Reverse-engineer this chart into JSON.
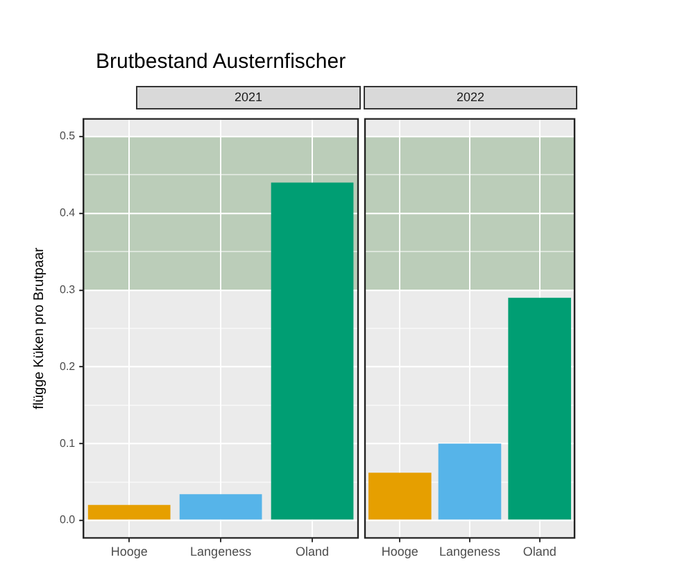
{
  "chart_data": [
    {
      "type": "bar",
      "title": "Brutbestand Austernfischer",
      "subtitle": "2021",
      "ylabel": "flügge Küken pro Brutpaar",
      "categories": [
        "Hooge",
        "Langeness",
        "Oland"
      ],
      "values": [
        0.02,
        0.034,
        0.44
      ],
      "colors": [
        "#e69f00",
        "#56b4e9",
        "#009e73"
      ],
      "ylim": [
        -0.023,
        0.523
      ],
      "yticks": [
        {
          "value": 0,
          "label": "0.0"
        },
        {
          "value": 0.05,
          "label": null
        },
        0.1,
        {
          "value": 0.15,
          "label": null
        },
        0.2,
        {
          "value": 0.25,
          "label": null
        },
        0.3,
        {
          "value": 0.35,
          "label": null
        },
        0.4,
        {
          "value": 0.45,
          "label": null
        },
        0.5
      ],
      "bands": [
        {
          "axis": "y",
          "from": 0.3,
          "to": 0.5,
          "color": "#bbcdb9"
        }
      ],
      "grid": true
    },
    {
      "type": "bar",
      "subtitle": "2022",
      "categories": [
        "Hooge",
        "Langeness",
        "Oland"
      ],
      "values": [
        0.062,
        0.1,
        0.29
      ],
      "colors": [
        "#e69f00",
        "#56b4e9",
        "#009e73"
      ],
      "ylim": [
        -0.023,
        0.523
      ],
      "yticks": [
        0,
        {
          "value": 0.05,
          "label": null
        },
        0.1,
        {
          "value": 0.15,
          "label": null
        },
        0.2,
        {
          "value": 0.25,
          "label": null
        },
        0.3,
        {
          "value": 0.35,
          "label": null
        },
        0.4,
        {
          "value": 0.45,
          "label": null
        },
        0.5
      ],
      "bands": [
        {
          "axis": "y",
          "from": 0.3,
          "to": 0.5,
          "color": "#bbcdb9"
        }
      ],
      "grid": true,
      "tick_labels": "x"
    }
  ]
}
